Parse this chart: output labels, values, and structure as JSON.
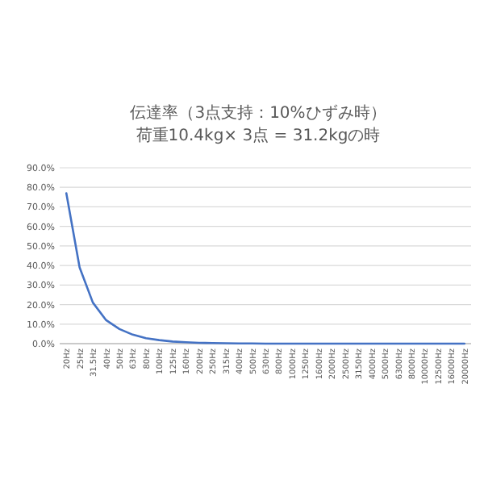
{
  "chart_data": {
    "type": "line",
    "title": "伝達率（3点支持：10%ひずみ時）",
    "subtitle": "荷重10.4kg× 3点 = 31.2kgの時",
    "categories": [
      "20Hz",
      "25Hz",
      "31.5Hz",
      "40Hz",
      "50Hz",
      "63Hz",
      "80Hz",
      "100Hz",
      "125Hz",
      "160Hz",
      "200Hz",
      "250Hz",
      "315Hz",
      "400Hz",
      "500Hz",
      "630Hz",
      "800Hz",
      "1000Hz",
      "1250Hz",
      "1600Hz",
      "2000Hz",
      "2500Hz",
      "3150Hz",
      "4000Hz",
      "5000Hz",
      "6300Hz",
      "8000Hz",
      "10000Hz",
      "12500Hz",
      "16000Hz",
      "20000Hz"
    ],
    "values": [
      77,
      39,
      21,
      12,
      7.5,
      4.6,
      2.8,
      1.8,
      1.1,
      0.7,
      0.4,
      0.3,
      0.2,
      0.1,
      0.1,
      0,
      0,
      0,
      0,
      0,
      0,
      0,
      0,
      0,
      0,
      0,
      0,
      0,
      0,
      0,
      0
    ],
    "color": "#4472c4",
    "ylim": [
      0,
      90
    ],
    "yticks": [
      {
        "value": 0,
        "label": "0.0%"
      },
      {
        "value": 10,
        "label": "10.0%"
      },
      {
        "value": 20,
        "label": "20.0%"
      },
      {
        "value": 30,
        "label": "30.0%"
      },
      {
        "value": 40,
        "label": "40.0%"
      },
      {
        "value": 50,
        "label": "50.0%"
      },
      {
        "value": 60,
        "label": "60.0%"
      },
      {
        "value": 70,
        "label": "70.0%"
      },
      {
        "value": 80,
        "label": "80.0%"
      },
      {
        "value": 90,
        "label": "90.0%"
      }
    ],
    "grid": "y"
  }
}
